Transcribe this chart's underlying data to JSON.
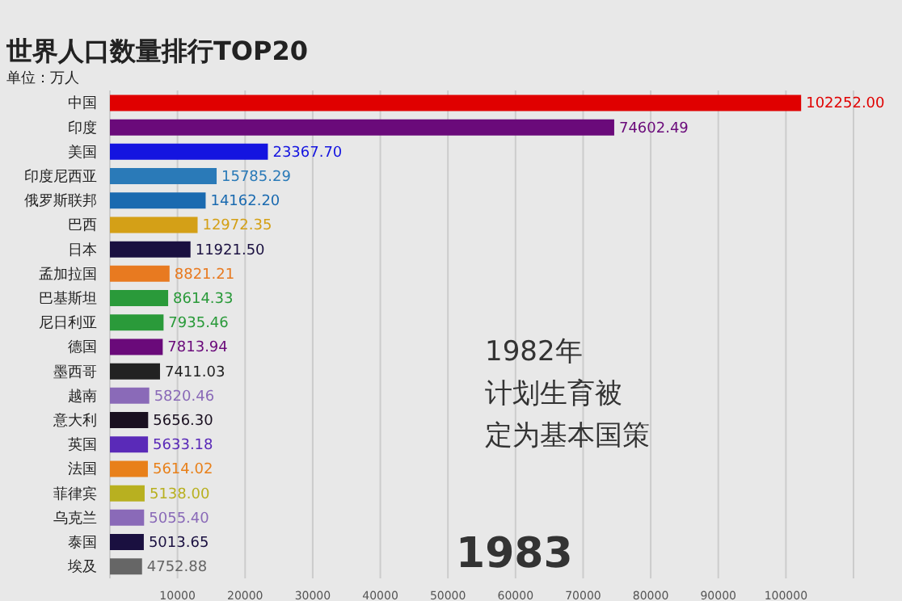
{
  "chart_data": {
    "type": "bar",
    "orientation": "horizontal",
    "title": "世界人口数量排行TOP20",
    "subtitle": "单位：万人",
    "categories": [
      "中国",
      "印度",
      "美国",
      "印度尼西亚",
      "俄罗斯联邦",
      "巴西",
      "日本",
      "孟加拉国",
      "巴基斯坦",
      "尼日利亚",
      "德国",
      "墨西哥",
      "越南",
      "意大利",
      "英国",
      "法国",
      "菲律宾",
      "乌克兰",
      "泰国",
      "埃及"
    ],
    "values": [
      102252.0,
      74602.49,
      23367.7,
      15785.29,
      14162.2,
      12972.35,
      11921.5,
      8821.21,
      8614.33,
      7935.46,
      7813.94,
      7411.03,
      5820.46,
      5656.3,
      5633.18,
      5614.02,
      5138.0,
      5055.4,
      5013.65,
      4752.88
    ],
    "value_labels": [
      "102252.00",
      "74602.49",
      "23367.70",
      "15785.29",
      "14162.20",
      "12972.35",
      "11921.50",
      "8821.21",
      "8614.33",
      "7935.46",
      "7813.94",
      "7411.03",
      "5820.46",
      "5656.30",
      "5633.18",
      "5614.02",
      "5138.00",
      "5055.40",
      "5013.65",
      "4752.88"
    ],
    "colors": [
      "#e00000",
      "#6a0a7a",
      "#1414e0",
      "#2a7ab8",
      "#1a6ab0",
      "#d4a017",
      "#1a1040",
      "#e87a20",
      "#2a9a3a",
      "#2a9a3a",
      "#6a0a7a",
      "#222222",
      "#8a6ab8",
      "#1a1020",
      "#5a2ab8",
      "#e8801a",
      "#b8b020",
      "#8a6ab8",
      "#1a1040",
      "#666666"
    ],
    "xlim": [
      0,
      110000
    ],
    "xticks": [
      10000,
      20000,
      30000,
      40000,
      50000,
      60000,
      70000,
      80000,
      90000,
      100000
    ],
    "grid": "x",
    "annotations": [
      "1983",
      "1982年",
      "计划生育被",
      "定为基本国策"
    ]
  }
}
